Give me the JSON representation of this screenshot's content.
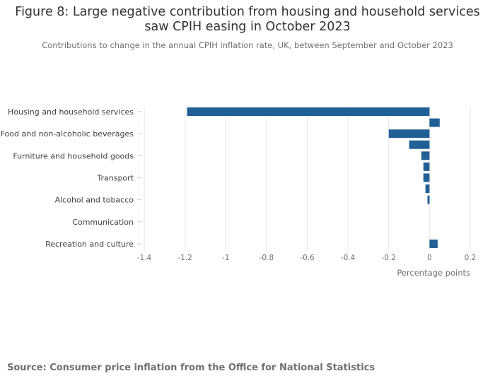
{
  "title": "Figure 8: Large negative contribution from housing and household services saw CPIH easing in October 2023",
  "subtitle": "Contributions to change in the annual CPIH inflation rate, UK, between September and October 2023",
  "source": "Source: Consumer price inflation from the Office for National Statistics",
  "colors": {
    "bar": "#206095",
    "grid": "#e6e6e6",
    "axis_text": "#707071",
    "label_text": "#414042"
  },
  "chart_data": {
    "type": "bar",
    "orientation": "horizontal",
    "title": "Figure 8: Large negative contribution from housing and household services saw CPIH easing in October 2023",
    "xlabel": "Percentage points",
    "ylabel": "",
    "xlim": [
      -1.4,
      0.2
    ],
    "grid": true,
    "x_ticks": [
      -1.4,
      -1.2,
      -1,
      -0.8,
      -0.6,
      -0.4,
      -0.2,
      0,
      0.2
    ],
    "x_tick_labels": [
      "-1.4",
      "-1.2",
      "-1",
      "-0.8",
      "-0.6",
      "-0.4",
      "-0.2",
      "0",
      "0.2"
    ],
    "categories": [
      "Housing and household services",
      "",
      "Food and non-alcoholic beverages",
      "",
      "Furniture and household goods",
      "",
      "Transport",
      "",
      "Alcohol and tobacco",
      "",
      "Communication",
      "",
      "Recreation and culture"
    ],
    "labeled_categories": [
      "Housing and household services",
      "Food and non-alcoholic beverages",
      "Furniture and household goods",
      "Transport",
      "Alcohol and tobacco",
      "Communication",
      "Recreation and culture"
    ],
    "values": [
      -1.19,
      0.05,
      -0.2,
      -0.1,
      -0.04,
      -0.03,
      -0.03,
      -0.02,
      -0.01,
      0,
      0,
      0,
      0.04
    ]
  }
}
